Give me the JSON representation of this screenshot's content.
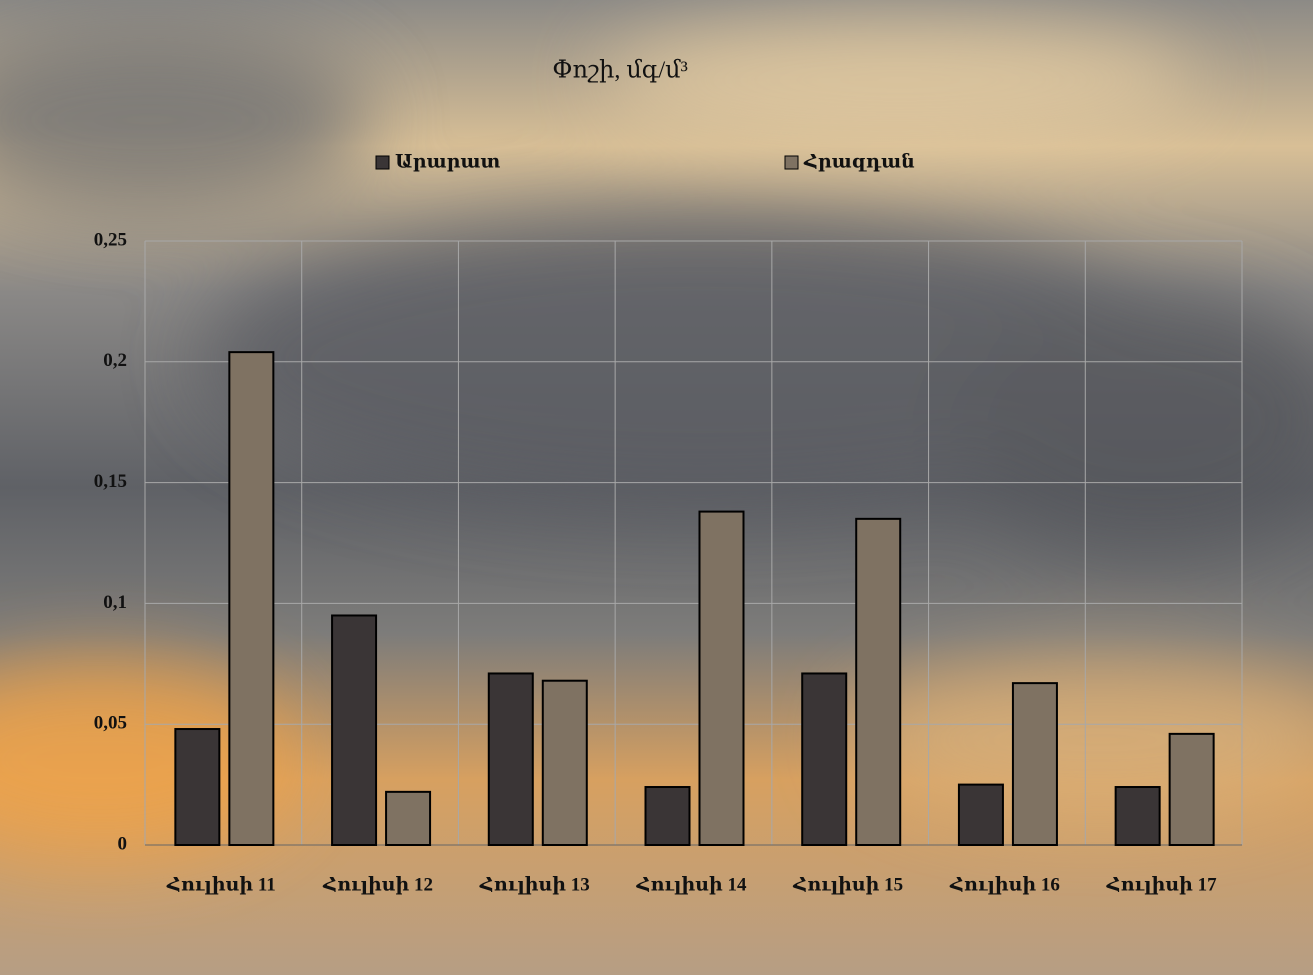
{
  "chart_data": {
    "type": "bar",
    "title": "Փոշի, մգ/մ³",
    "categories": [
      "Հուլիսի 11",
      "Հուլիսի 12",
      "Հուլիսի 13",
      "Հուլիսի 14",
      "Հուլիսի 15",
      "Հուլիսի 16",
      "Հուլիսի 17"
    ],
    "series": [
      {
        "name": "Արարատ",
        "color": "#3a3536",
        "values": [
          0.048,
          0.095,
          0.071,
          0.024,
          0.071,
          0.025,
          0.024
        ]
      },
      {
        "name": "Հրազդան",
        "color": "#7f7262",
        "values": [
          0.204,
          0.022,
          0.068,
          0.138,
          0.135,
          0.067,
          0.046
        ]
      }
    ],
    "ylim": [
      0,
      0.25
    ],
    "yticks": [
      0,
      {
        "value": 0.05,
        "label": "0,05"
      },
      {
        "value": 0.1,
        "label": "0,1"
      },
      {
        "value": 0.15,
        "label": "0,15"
      },
      {
        "value": 0.2,
        "label": "0,2"
      },
      {
        "value": 0.25,
        "label": "0,25"
      }
    ],
    "grid": true,
    "legend": "top"
  }
}
